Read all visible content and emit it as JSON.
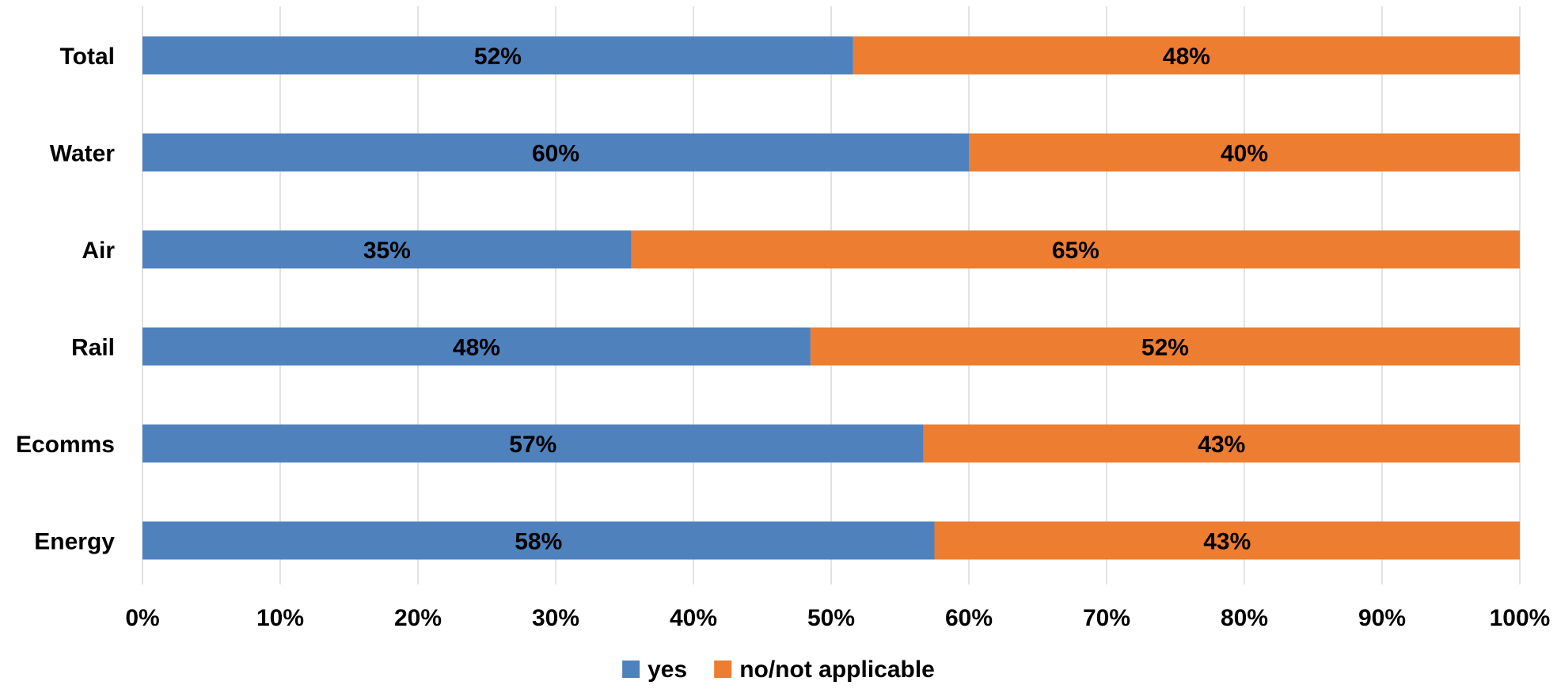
{
  "chart_data": {
    "type": "bar",
    "orientation": "horizontal",
    "stacked": "percent",
    "title": "",
    "xlabel": "",
    "ylabel": "",
    "categories": [
      "Total",
      "Water",
      "Air",
      "Rail",
      "Ecomms",
      "Energy"
    ],
    "series": [
      {
        "name": "yes",
        "color": "#4F81BD",
        "values": [
          51.6,
          60.0,
          35.5,
          48.5,
          56.7,
          57.5
        ],
        "labels": [
          "52%",
          "60%",
          "35%",
          "48%",
          "57%",
          "58%"
        ]
      },
      {
        "name": "no/not applicable",
        "color": "#ED7D31",
        "values": [
          48.4,
          40.0,
          64.5,
          51.5,
          43.3,
          42.5
        ],
        "labels": [
          "48%",
          "40%",
          "65%",
          "52%",
          "43%",
          "43%"
        ]
      }
    ],
    "xlim": [
      0,
      100
    ],
    "x_ticks": [
      "0%",
      "10%",
      "20%",
      "30%",
      "40%",
      "50%",
      "60%",
      "70%",
      "80%",
      "90%",
      "100%"
    ],
    "grid": "vertical",
    "gridline_color": "#D9D9D9",
    "legend": "bottom-center"
  }
}
